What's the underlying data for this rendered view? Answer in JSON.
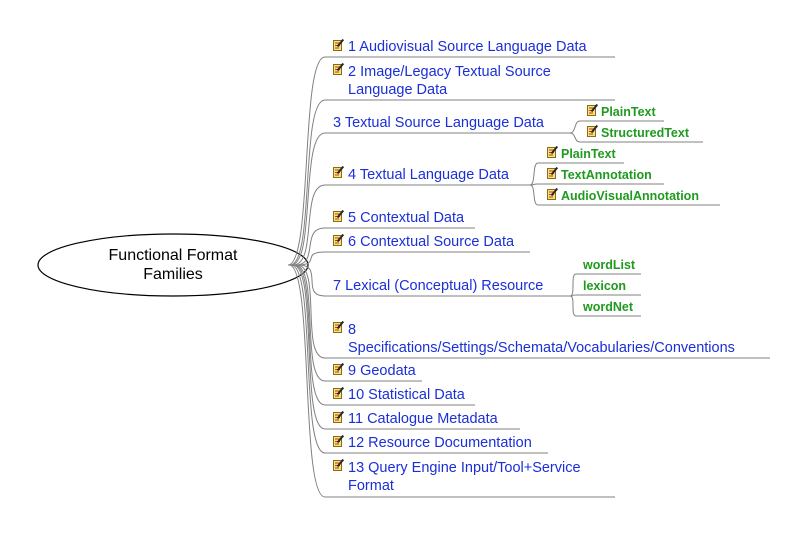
{
  "root": {
    "line1": "Functional Format",
    "line2": "Families"
  },
  "branches": [
    {
      "label": "1 Audiovisual Source Language Data",
      "has_note_icon": true
    },
    {
      "line1": "2 Image/Legacy Textual Source",
      "line2": "Language Data",
      "has_note_icon": true
    },
    {
      "label": "3 Textual Source Language Data",
      "has_note_icon": false,
      "children": [
        {
          "label": "PlainText",
          "has_note_icon": true
        },
        {
          "label": "StructuredText",
          "has_note_icon": true
        }
      ]
    },
    {
      "label": "4 Textual Language Data",
      "has_note_icon": true,
      "children": [
        {
          "label": "PlainText",
          "has_note_icon": true
        },
        {
          "label": "TextAnnotation",
          "has_note_icon": true
        },
        {
          "label": "AudioVisualAnnotation",
          "has_note_icon": true
        }
      ]
    },
    {
      "label": "5 Contextual Data",
      "has_note_icon": true
    },
    {
      "label": "6 Contextual Source Data",
      "has_note_icon": true
    },
    {
      "label": "7 Lexical (Conceptual) Resource",
      "has_note_icon": false,
      "children": [
        {
          "label": "wordList",
          "has_note_icon": false
        },
        {
          "label": "lexicon",
          "has_note_icon": false
        },
        {
          "label": "wordNet",
          "has_note_icon": false
        }
      ]
    },
    {
      "line1": "8",
      "line2": "Specifications/Settings/Schemata/Vocabularies/Conventions",
      "has_note_icon": true
    },
    {
      "label": "9 Geodata",
      "has_note_icon": true
    },
    {
      "label": "10 Statistical Data",
      "has_note_icon": true
    },
    {
      "label": "11 Catalogue Metadata",
      "has_note_icon": true
    },
    {
      "label": "12 Resource Documentation",
      "has_note_icon": true
    },
    {
      "line1": "13 Query Engine Input/Tool+Service",
      "line2": "Format",
      "has_note_icon": true
    }
  ],
  "colors": {
    "branch_text": "#1a2fd8",
    "leaf_text": "#1f9a1f",
    "lines": "#808080",
    "icon": "note-pencil-icon"
  }
}
